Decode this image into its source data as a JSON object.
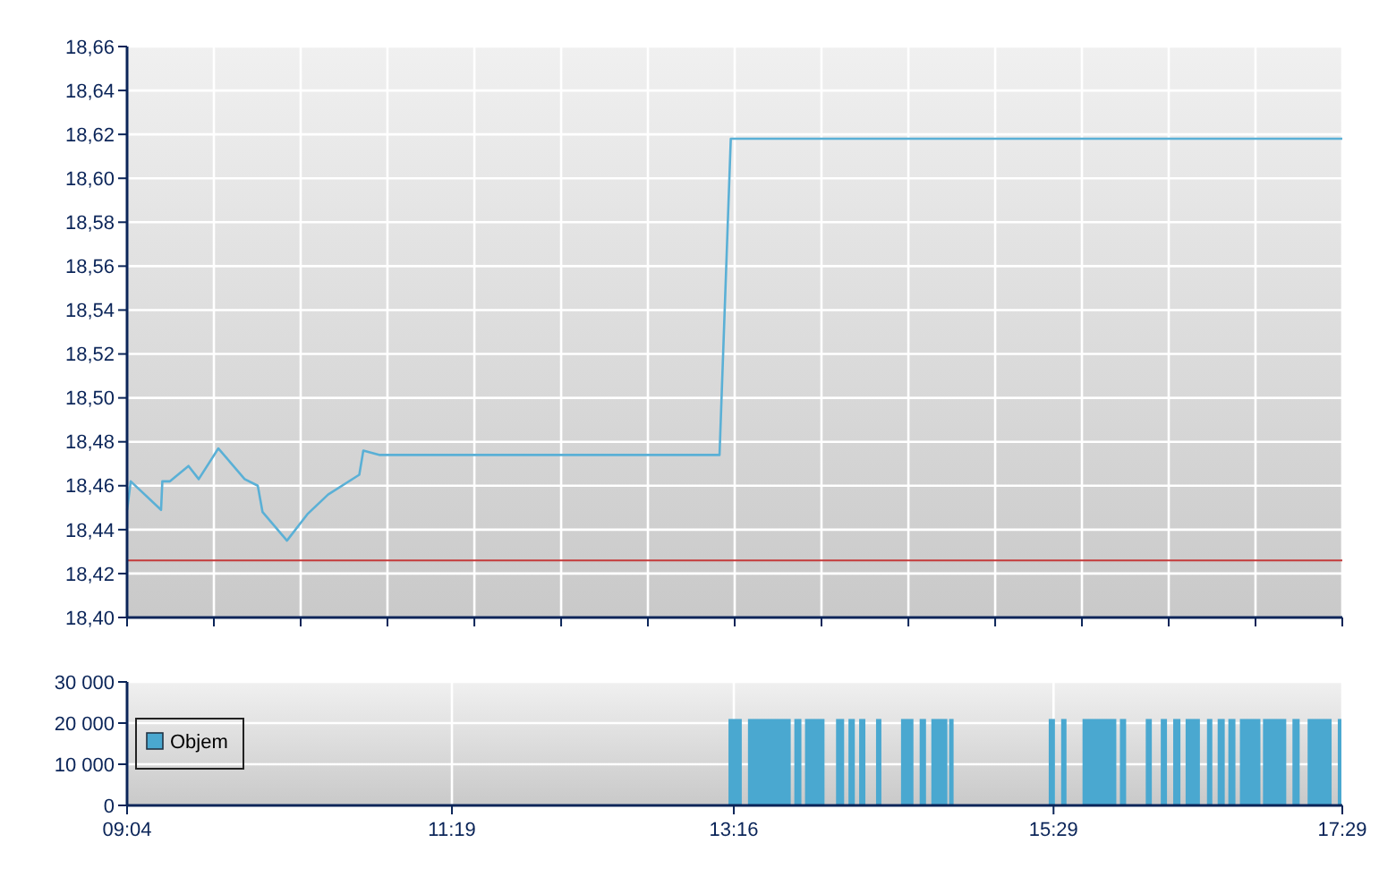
{
  "chart_data": [
    {
      "type": "line",
      "x": [
        9.067,
        9.092,
        9.302,
        9.311,
        9.364,
        9.492,
        9.563,
        9.699,
        9.881,
        9.972,
        10.005,
        10.174,
        10.315,
        10.459,
        10.675,
        10.703,
        10.818,
        13.17,
        13.248,
        17.483
      ],
      "series": [
        {
          "color": "#5ab0d6",
          "values": [
            18.449,
            18.462,
            18.449,
            18.462,
            18.462,
            18.469,
            18.463,
            18.477,
            18.463,
            18.46,
            18.448,
            18.435,
            18.447,
            18.456,
            18.465,
            18.476,
            18.474,
            18.474,
            18.618,
            18.618
          ]
        }
      ],
      "xlim": [
        9.0667,
        17.4833
      ],
      "xticks": [
        {
          "value": 9.0667,
          "label": null
        },
        {
          "value": 9.668,
          "label": null
        },
        {
          "value": 10.269,
          "label": null
        },
        {
          "value": 10.87,
          "label": null
        },
        {
          "value": 11.472,
          "label": null
        },
        {
          "value": 12.073,
          "label": null
        },
        {
          "value": 12.674,
          "label": null
        },
        {
          "value": 13.275,
          "label": null
        },
        {
          "value": 13.876,
          "label": null
        },
        {
          "value": 14.478,
          "label": null
        },
        {
          "value": 15.079,
          "label": null
        },
        {
          "value": 15.68,
          "label": null
        },
        {
          "value": 16.281,
          "label": null
        },
        {
          "value": 16.882,
          "label": null
        },
        {
          "value": 17.4833,
          "label": null
        }
      ],
      "ylim": [
        18.4,
        18.66
      ],
      "yticks": [
        {
          "value": 18.4,
          "label": "18,40"
        },
        {
          "value": 18.42,
          "label": "18,42"
        },
        {
          "value": 18.44,
          "label": "18,44"
        },
        {
          "value": 18.46,
          "label": "18,46"
        },
        {
          "value": 18.48,
          "label": "18,48"
        },
        {
          "value": 18.5,
          "label": "18,50"
        },
        {
          "value": 18.52,
          "label": "18,52"
        },
        {
          "value": 18.54,
          "label": "18,54"
        },
        {
          "value": 18.56,
          "label": "18,56"
        },
        {
          "value": 18.58,
          "label": "18,58"
        },
        {
          "value": 18.6,
          "label": "18,60"
        },
        {
          "value": 18.62,
          "label": "18,62"
        },
        {
          "value": 18.64,
          "label": "18,64"
        },
        {
          "value": 18.66,
          "label": "18,66"
        }
      ],
      "ref_lines": [
        {
          "axis": "y",
          "value": 18.426,
          "color": "#c43a3a"
        }
      ],
      "grid": true,
      "tick_labels": "y"
    },
    {
      "type": "histogram",
      "bins": [
        13.232,
        13.324,
        13.367,
        13.663,
        13.688,
        13.737,
        13.762,
        13.897,
        13.977,
        14.033,
        14.063,
        14.107,
        14.137,
        14.18,
        14.254,
        14.291,
        14.427,
        14.513,
        14.556,
        14.6,
        14.637,
        14.748,
        14.76,
        14.791,
        15.45,
        15.493,
        15.536,
        15.573,
        15.684,
        15.918,
        15.943,
        15.986,
        16.122,
        16.164,
        16.226,
        16.269,
        16.312,
        16.362,
        16.398,
        16.497,
        16.546,
        16.583,
        16.62,
        16.669,
        16.694,
        16.743,
        16.774,
        16.916,
        16.934,
        17.095,
        17.138,
        17.188,
        17.243,
        17.409,
        17.452,
        17.477
      ],
      "series": [
        {
          "name": "Objem",
          "color": "#4aa8d0",
          "values": [
            21000,
            0,
            21000,
            0,
            21000,
            0,
            21000,
            0,
            21000,
            0,
            21000,
            0,
            21000,
            0,
            21000,
            0,
            21000,
            0,
            21000,
            0,
            21000,
            0,
            21000,
            0,
            21000,
            0,
            21000,
            0,
            21000,
            0,
            21000,
            0,
            21000,
            0,
            21000,
            0,
            21000,
            0,
            21000,
            0,
            21000,
            0,
            21000,
            0,
            21000,
            0,
            21000,
            0,
            21000,
            0,
            21000,
            0,
            21000,
            0,
            21000
          ]
        }
      ],
      "xlim": [
        9.0667,
        17.4833
      ],
      "xticks": [
        {
          "value": 9.0667,
          "label": "09:04"
        },
        {
          "value": 11.3167,
          "label": "11:19"
        },
        {
          "value": 13.269,
          "label": "13:16"
        },
        {
          "value": 15.4833,
          "label": "15:29"
        },
        {
          "value": 17.4833,
          "label": "17:29"
        }
      ],
      "ylim": [
        0,
        30000
      ],
      "yticks": [
        0,
        {
          "value": 10000,
          "label": "10 000"
        },
        {
          "value": 20000,
          "label": "20 000"
        },
        {
          "value": 30000,
          "label": "30 000"
        }
      ],
      "grid": true,
      "legend": "left"
    }
  ]
}
